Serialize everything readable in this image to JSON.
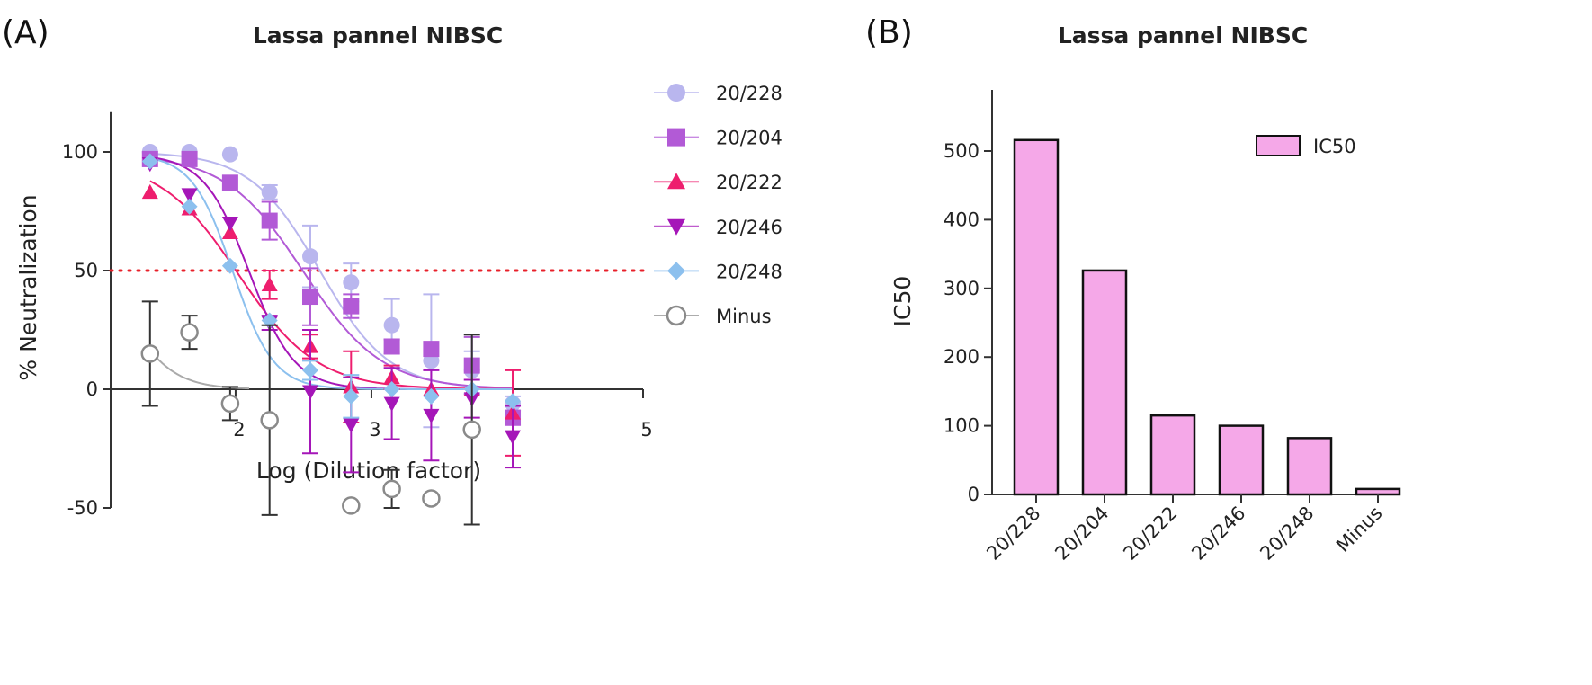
{
  "chart_data": [
    {
      "panel_label": "(A)",
      "type": "scatter",
      "title": "Lassa pannel NIBSC",
      "xlabel": "Log (Dilution factor)",
      "ylabel": "% Neutralization",
      "xlim": [
        1.08,
        5
      ],
      "ylim": [
        -50,
        130
      ],
      "xticks": [
        2,
        3,
        5
      ],
      "yticks": [
        -50,
        0,
        50,
        100
      ],
      "reference_line": {
        "y": 50,
        "style": "dotted",
        "color": "#e8202a"
      },
      "legend_position": "right",
      "x": [
        1.37,
        1.66,
        1.96,
        2.25,
        2.55,
        2.85,
        3.15,
        3.44,
        3.74,
        4.04
      ],
      "series": [
        {
          "name": "20/228",
          "marker": "circle",
          "color": "#b9b6ee",
          "values": [
            100,
            100,
            99,
            83,
            56,
            45,
            27,
            12,
            8,
            -6
          ],
          "errors": [
            0,
            0,
            0,
            3,
            13,
            8,
            11,
            28,
            8,
            3
          ],
          "fit": {
            "top": 100,
            "bottom": 0,
            "ec50": 2.62,
            "hill": 1.7
          }
        },
        {
          "name": "20/204",
          "marker": "square",
          "color": "#b25ad6",
          "values": [
            97,
            97,
            87,
            71,
            39,
            35,
            18,
            17,
            10,
            -12
          ],
          "errors": [
            0,
            0,
            0,
            8,
            12,
            5,
            3,
            0,
            12,
            3
          ],
          "fit": {
            "top": 99,
            "bottom": 0,
            "ec50": 2.5,
            "hill": 1.5
          }
        },
        {
          "name": "20/222",
          "marker": "triangle-up",
          "color": "#ee1e6e",
          "values": [
            83,
            76,
            66,
            44,
            18,
            1,
            5,
            0,
            0,
            -10
          ],
          "errors": [
            0,
            0,
            0,
            6,
            5,
            15,
            5,
            0,
            0,
            18
          ],
          "fit": {
            "top": 97,
            "bottom": 0,
            "ec50": 2.02,
            "hill": 1.5
          }
        },
        {
          "name": "20/246",
          "marker": "triangle-down",
          "color": "#a516b8",
          "values": [
            95,
            82,
            70,
            28,
            -1,
            -15,
            -6,
            -11,
            -4,
            -20
          ],
          "errors": [
            0,
            0,
            0,
            3,
            26,
            20,
            15,
            19,
            8,
            13
          ],
          "fit": {
            "top": 99,
            "bottom": 0,
            "ec50": 2.1,
            "hill": 2.6
          }
        },
        {
          "name": "20/248",
          "marker": "diamond",
          "color": "#8cc0ee",
          "values": [
            96,
            77,
            52,
            29,
            8,
            -3,
            0,
            -3,
            0,
            -5
          ],
          "errors": [
            0,
            0,
            0,
            0,
            4,
            9,
            0,
            0,
            0,
            0
          ],
          "fit": {
            "top": 99,
            "bottom": 0,
            "ec50": 1.98,
            "hill": 2.9
          }
        },
        {
          "name": "Minus",
          "marker": "open-circle",
          "color": "#8a8a8a",
          "values": [
            15,
            24,
            -6,
            -13,
            null,
            -49,
            -42,
            -46,
            -17,
            null
          ],
          "errors": [
            22,
            7,
            7,
            40,
            0,
            0,
            8,
            0,
            40,
            0
          ],
          "fit": {
            "top": 60,
            "bottom": 0,
            "ec50": 1.2,
            "hill": 2.5,
            "xmax": 2.1
          }
        }
      ]
    },
    {
      "panel_label": "(B)",
      "type": "bar",
      "title": "Lassa pannel NIBSC",
      "xlabel": "",
      "ylabel": "IC50",
      "ylim": [
        0,
        560
      ],
      "yticks": [
        0,
        100,
        200,
        300,
        400,
        500
      ],
      "categories": [
        "20/228",
        "20/204",
        "20/222",
        "20/246",
        "20/248",
        "Minus"
      ],
      "values": [
        516,
        326,
        115,
        100,
        82,
        8
      ],
      "bar_color": "#f5a8e8",
      "legend": [
        {
          "name": "IC50",
          "color": "#f5a8e8"
        }
      ],
      "legend_position": "top-right"
    }
  ]
}
